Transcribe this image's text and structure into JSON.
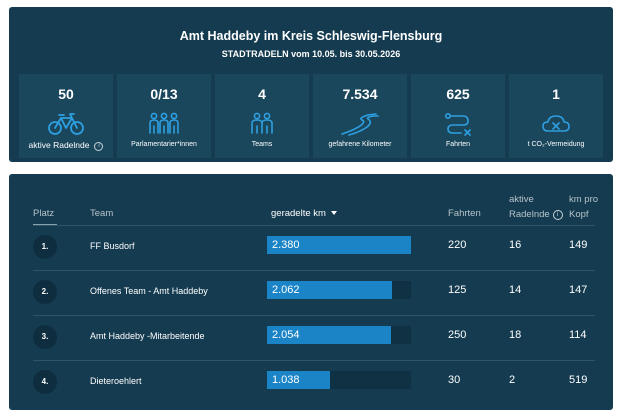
{
  "header": {
    "title": "Amt Haddeby im Kreis Schleswig-Flensburg",
    "subtitle": "STADTRADELN vom 10.05. bis 30.05.2026"
  },
  "stats": [
    {
      "value": "50",
      "label": "aktive Radelnde",
      "icon": "bicycle-icon",
      "has_info": true
    },
    {
      "value": "0/13",
      "label": "Parlamentarier*innen",
      "icon": "parliamentarians-icon"
    },
    {
      "value": "4",
      "label": "Teams",
      "icon": "team-icon"
    },
    {
      "value": "7.534",
      "label": "gefahrene Kilometer",
      "icon": "road-icon"
    },
    {
      "value": "625",
      "label": "Fahrten",
      "icon": "route-icon"
    },
    {
      "value": "1",
      "label": "t CO₂-Vermeidung",
      "icon": "co2-cloud-icon"
    }
  ],
  "table": {
    "headers": {
      "platz": "Platz",
      "team": "Team",
      "km": "geradelte km",
      "fahrten": "Fahrten",
      "aktive_line1": "aktive",
      "aktive_line2": "Radelnde",
      "kmpro_line1": "km pro",
      "kmpro_line2": "Kopf"
    },
    "rows": [
      {
        "rank": "1.",
        "team": "FF Busdorf",
        "km": "2.380",
        "km_fraction": 1.0,
        "fahrten": "220",
        "aktive": "16",
        "km_pro_kopf": "149"
      },
      {
        "rank": "2.",
        "team": "Offenes Team - Amt Haddeby",
        "km": "2.062",
        "km_fraction": 0.866,
        "fahrten": "125",
        "aktive": "14",
        "km_pro_kopf": "147"
      },
      {
        "rank": "3.",
        "team": "Amt Haddeby -Mitarbeitende",
        "km": "2.054",
        "km_fraction": 0.863,
        "fahrten": "250",
        "aktive": "18",
        "km_pro_kopf": "114"
      },
      {
        "rank": "4.",
        "team": "Dieteroehlert",
        "km": "1.038",
        "km_fraction": 0.436,
        "fahrten": "30",
        "aktive": "2",
        "km_pro_kopf": "519"
      }
    ]
  },
  "colors": {
    "panel": "#143b4f",
    "card": "#1b475d",
    "bar": "#1a84c7",
    "icon": "#2e9fe0"
  }
}
